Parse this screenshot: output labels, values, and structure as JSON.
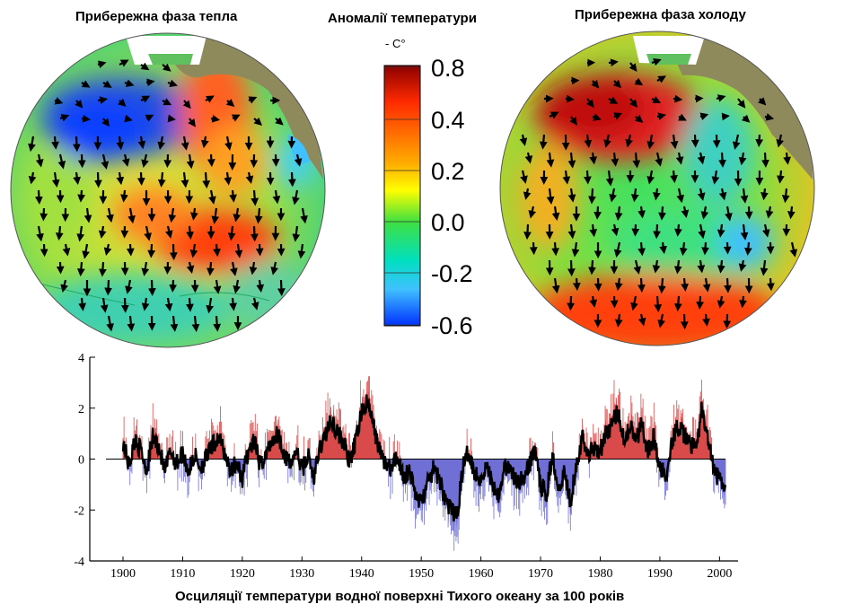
{
  "maps": {
    "warm_title": "Прибережна фаза тепла",
    "cold_title": "Прибережна фаза холоду"
  },
  "colorbar": {
    "title": "Аномалії температури",
    "unit": "- C°",
    "tick_labels": [
      "0.8",
      "0.4",
      "0.2",
      "0.0",
      "-0.2",
      "-0.6"
    ],
    "colors": [
      "#8b0000",
      "#ff2a00",
      "#ffb000",
      "#ffff00",
      "#40e040",
      "#00e0c0",
      "#40c0ff",
      "#0030ff"
    ]
  },
  "chart_data": {
    "type": "area",
    "title": "Осциляції температури водної поверхні Тихого океану за 100 років",
    "xlabel": "",
    "ylabel": "",
    "xlim": [
      1900,
      2001
    ],
    "ylim": [
      -4,
      4
    ],
    "x_ticks": [
      1900,
      1910,
      1920,
      1930,
      1940,
      1950,
      1960,
      1970,
      1980,
      1990,
      2000
    ],
    "y_ticks": [
      4,
      2,
      0,
      -2,
      -4
    ],
    "positive_color": "#d94a4a",
    "negative_color": "#6f6fd6",
    "grid": false,
    "series": [
      {
        "x": [
          1900,
          1901,
          1902,
          1903,
          1904,
          1905,
          1906,
          1907,
          1908,
          1909,
          1910,
          1911,
          1912,
          1913,
          1914,
          1915,
          1916,
          1917,
          1918,
          1919,
          1920,
          1921,
          1922,
          1923,
          1924,
          1925,
          1926,
          1927,
          1928,
          1929,
          1930,
          1931,
          1932,
          1933,
          1934,
          1935,
          1936,
          1937,
          1938,
          1939,
          1940,
          1941,
          1942,
          1943,
          1944,
          1945,
          1946,
          1947,
          1948,
          1949,
          1950,
          1951,
          1952,
          1953,
          1954,
          1955,
          1956,
          1957,
          1958,
          1959,
          1960,
          1961,
          1962,
          1963,
          1964,
          1965,
          1966,
          1967,
          1968,
          1969,
          1970,
          1971,
          1972,
          1973,
          1974,
          1975,
          1976,
          1977,
          1978,
          1979,
          1980,
          1981,
          1982,
          1983,
          1984,
          1985,
          1986,
          1987,
          1988,
          1989,
          1990,
          1991,
          1992,
          1993,
          1994,
          1995,
          1996,
          1997,
          1998,
          1999,
          2000,
          2001
        ],
        "values": [
          0.8,
          -0.3,
          0.9,
          0.4,
          -0.5,
          1.0,
          0.6,
          -0.6,
          0.4,
          -0.2,
          0.3,
          -0.6,
          0.2,
          -0.4,
          0.1,
          0.6,
          1.0,
          0.3,
          -0.5,
          -0.2,
          -0.9,
          0.4,
          0.8,
          -0.3,
          0.2,
          0.9,
          1.2,
          0.3,
          -0.3,
          0.4,
          -0.5,
          0.2,
          -0.9,
          0.5,
          1.2,
          1.8,
          1.2,
          0.8,
          -0.2,
          0.8,
          2.2,
          2.6,
          1.5,
          0.4,
          -0.2,
          -0.5,
          0.2,
          -0.8,
          -0.5,
          -1.6,
          -2.0,
          -1.2,
          -0.5,
          -0.9,
          -1.8,
          -2.4,
          -2.6,
          -0.3,
          0.4,
          -0.7,
          -0.9,
          -0.3,
          -1.2,
          -1.6,
          -0.3,
          -0.6,
          -1.1,
          -0.9,
          -0.4,
          0.5,
          -1.2,
          -1.6,
          0.2,
          -1.3,
          -0.6,
          -1.9,
          -0.2,
          1.0,
          0.2,
          0.6,
          0.4,
          1.2,
          1.6,
          2.2,
          0.9,
          1.6,
          0.8,
          1.7,
          0.4,
          1.0,
          -0.5,
          -0.7,
          0.8,
          1.5,
          1.1,
          0.8,
          0.4,
          2.2,
          1.0,
          -0.5,
          -1.0,
          -1.2
        ]
      }
    ]
  }
}
